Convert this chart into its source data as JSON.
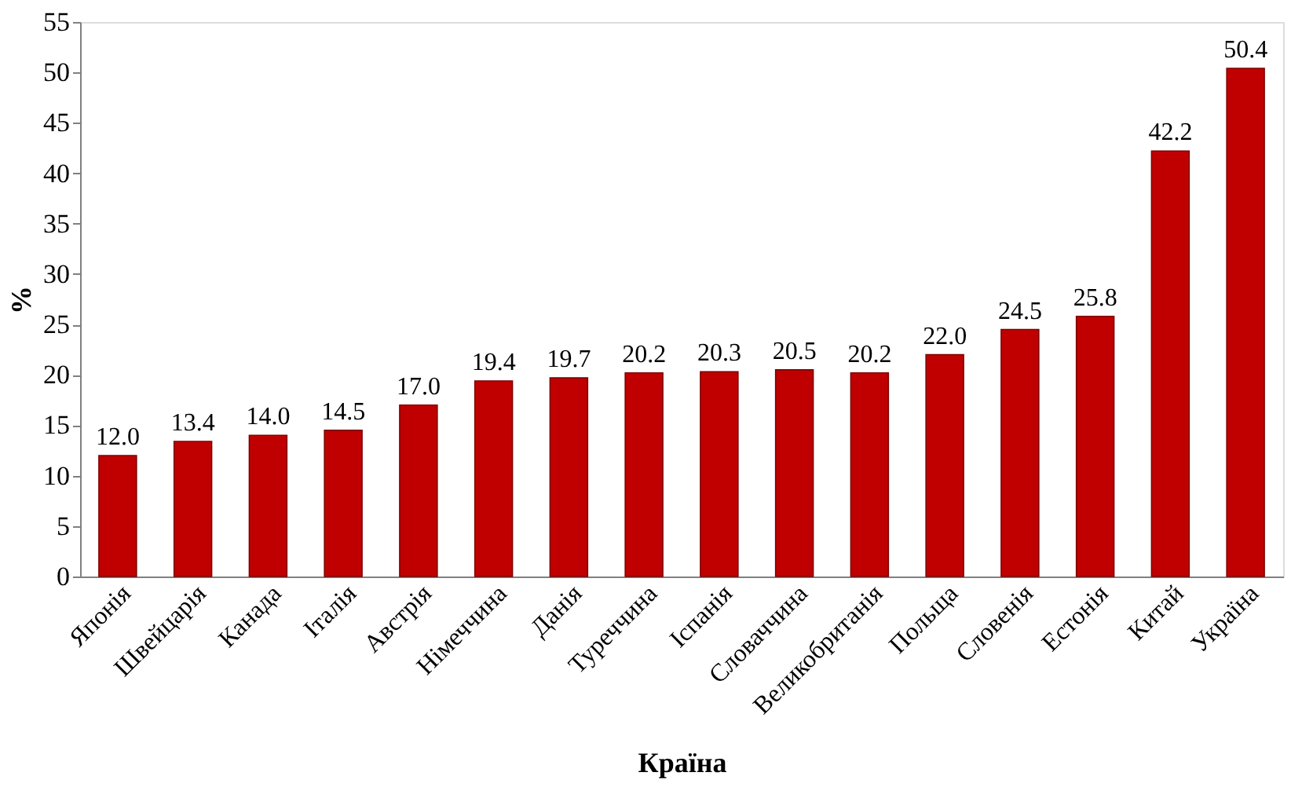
{
  "chart_data": {
    "type": "bar",
    "xlabel": "Країна",
    "ylabel": "%",
    "categories": [
      "Японія",
      "Швейцарія",
      "Канада",
      "Італія",
      "Австрія",
      "Німеччина",
      "Данія",
      "Туреччина",
      "Іспанія",
      "Словаччина",
      "Великобританія",
      "Польща",
      "Словенія",
      "Естонія",
      "Китай",
      "Україна"
    ],
    "values": [
      12.0,
      13.4,
      14.0,
      14.5,
      17.0,
      19.4,
      19.7,
      20.2,
      20.3,
      20.5,
      20.2,
      22.0,
      24.5,
      25.8,
      42.2,
      50.4
    ],
    "value_labels": [
      "12.0",
      "13.4",
      "14.0",
      "14.5",
      "17.0",
      "19.4",
      "19.7",
      "20.2",
      "20.3",
      "20.5",
      "20.2",
      "22.0",
      "24.5",
      "25.8",
      "42.2",
      "50.4"
    ],
    "color": "#c00000",
    "ylim": [
      0,
      55
    ],
    "yticks": [
      0,
      5,
      10,
      15,
      20,
      25,
      30,
      35,
      40,
      45,
      50,
      55
    ],
    "grid": false
  }
}
